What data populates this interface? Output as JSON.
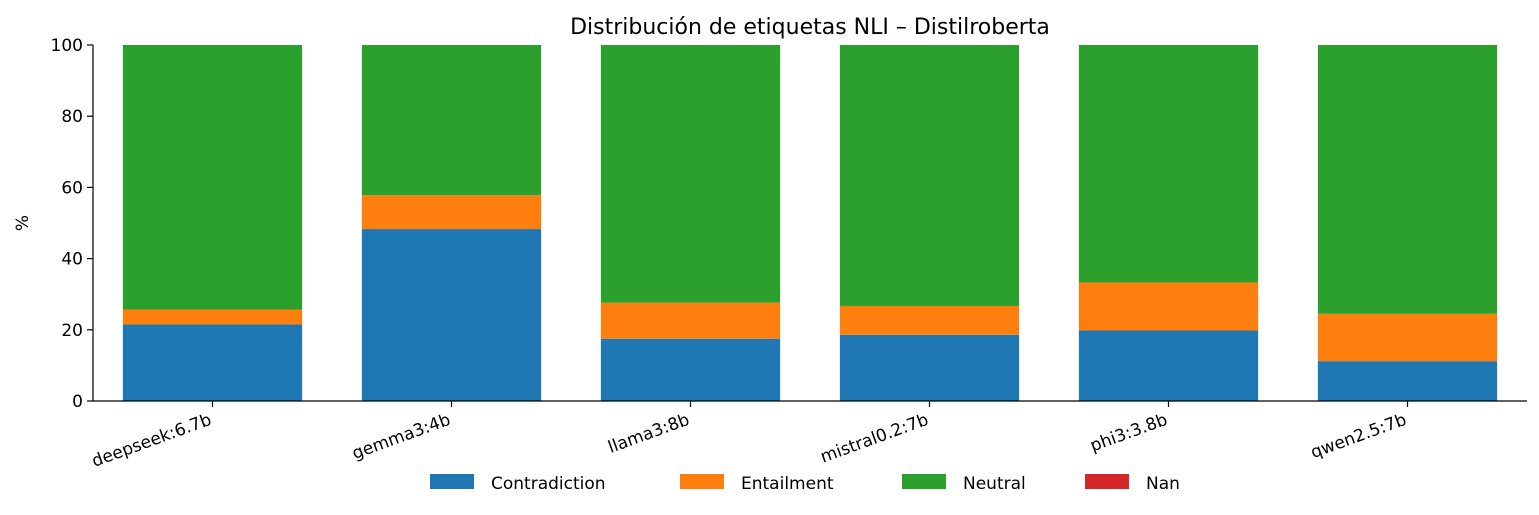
{
  "chart_data": {
    "type": "bar",
    "stacked": true,
    "title": "Distribución de etiquetas NLI – Distilroberta",
    "xlabel": "",
    "ylabel": "%",
    "ylim": [
      0,
      100
    ],
    "yticks": [
      0,
      20,
      40,
      60,
      80,
      100
    ],
    "grid": false,
    "legend_position": "bottom",
    "categories": [
      "deepseek:6.7b",
      "gemma3:4b",
      "llama3:8b",
      "mistral0.2:7b",
      "phi3:3.8b",
      "qwen2.5:7b"
    ],
    "series": [
      {
        "name": "Contradiction",
        "color": "#1f77b4",
        "values": [
          21.5,
          48.3,
          17.5,
          18.6,
          19.8,
          11.2
        ]
      },
      {
        "name": "Entailment",
        "color": "#ff7f0e",
        "values": [
          4.2,
          9.5,
          10.1,
          8.1,
          13.5,
          13.3
        ]
      },
      {
        "name": "Neutral",
        "color": "#2ca02c",
        "values": [
          74.3,
          42.2,
          72.4,
          73.3,
          66.7,
          75.5
        ]
      },
      {
        "name": "Nan",
        "color": "#d62728",
        "values": [
          0,
          0,
          0,
          0,
          0,
          0
        ]
      }
    ]
  }
}
